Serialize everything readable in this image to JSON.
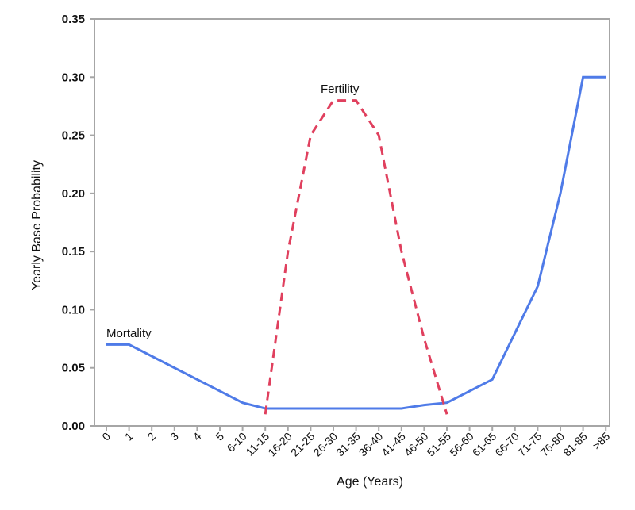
{
  "chart_data": {
    "type": "line",
    "title": "",
    "xlabel": "Age (Years)",
    "ylabel": "Yearly Base Probability",
    "ylim": [
      0,
      0.35
    ],
    "yticks": [
      "0.00",
      "0.05",
      "0.10",
      "0.15",
      "0.20",
      "0.25",
      "0.30",
      "0.35"
    ],
    "categories": [
      "0",
      "1",
      "2",
      "3",
      "4",
      "5",
      "6-10",
      "11-15",
      "16-20",
      "21-25",
      "26-30",
      "31-35",
      "36-40",
      "41-45",
      "46-50",
      "51-55",
      "56-60",
      "61-65",
      "66-70",
      "71-75",
      "76-80",
      "81-85",
      ">85"
    ],
    "grid": false,
    "legend": "none",
    "series": [
      {
        "name": "Mortality",
        "style": "solid",
        "color": "#4f7be8",
        "points": [
          {
            "x": "0",
            "y": 0.07
          },
          {
            "x": "1",
            "y": 0.07
          },
          {
            "x": "6-10",
            "y": 0.02
          },
          {
            "x": "11-15",
            "y": 0.015
          },
          {
            "x": "41-45",
            "y": 0.015
          },
          {
            "x": "46-50",
            "y": 0.018
          },
          {
            "x": "51-55",
            "y": 0.02
          },
          {
            "x": "61-65",
            "y": 0.04
          },
          {
            "x": "71-75",
            "y": 0.12
          },
          {
            "x": "76-80",
            "y": 0.2
          },
          {
            "x": "81-85",
            "y": 0.3
          },
          {
            "x": ">85",
            "y": 0.3
          }
        ]
      },
      {
        "name": "Fertility",
        "style": "dashed",
        "color": "#e0405e",
        "points": [
          {
            "x": "11-15",
            "y": 0.01
          },
          {
            "x": "16-20",
            "y": 0.15
          },
          {
            "x": "21-25",
            "y": 0.25
          },
          {
            "x": "26-30",
            "y": 0.28
          },
          {
            "x": "31-35",
            "y": 0.28
          },
          {
            "x": "36-40",
            "y": 0.25
          },
          {
            "x": "41-45",
            "y": 0.15
          },
          {
            "x": "46-50",
            "y": 0.075
          },
          {
            "x": "51-55",
            "y": 0.01
          }
        ]
      }
    ],
    "annotations": [
      "Mortality",
      "Fertility"
    ]
  }
}
